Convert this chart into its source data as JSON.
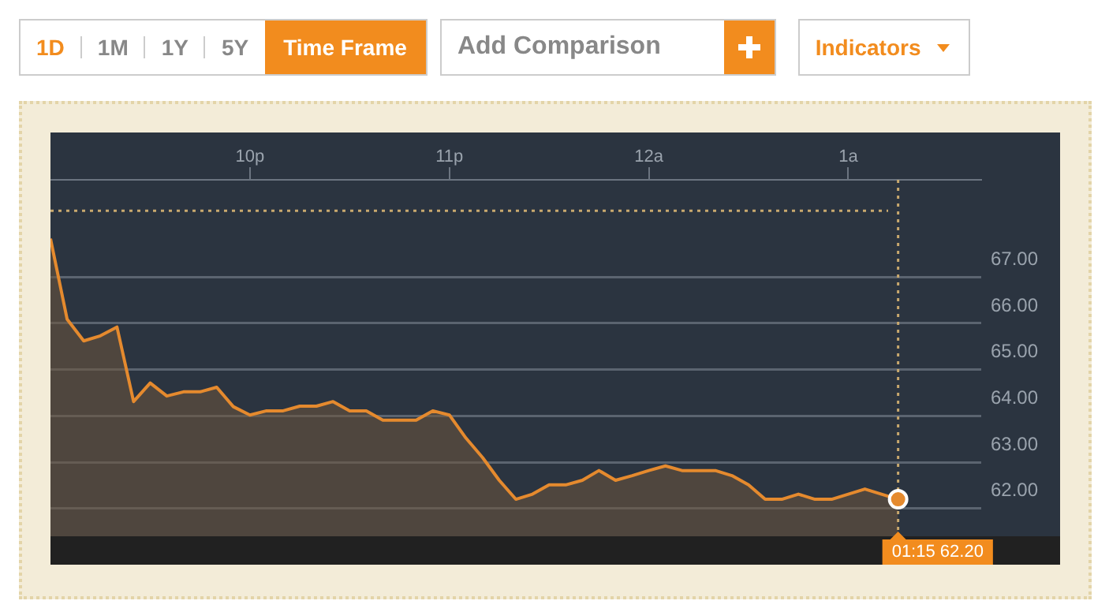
{
  "chart_data": {
    "type": "area",
    "categories": [
      null,
      null,
      null,
      null,
      null,
      null,
      null,
      null,
      null,
      null,
      null,
      null,
      "10p",
      null,
      null,
      null,
      null,
      null,
      null,
      null,
      null,
      null,
      null,
      null,
      "11p",
      null,
      null,
      null,
      null,
      null,
      null,
      null,
      null,
      null,
      null,
      null,
      "12a",
      null,
      null,
      null,
      null,
      null,
      null,
      null,
      null,
      null,
      null,
      null,
      "1a",
      null,
      null,
      null,
      null,
      null,
      null,
      null,
      null
    ],
    "values": [
      67.83,
      66.09,
      65.62,
      65.73,
      65.92,
      64.31,
      64.71,
      64.43,
      64.52,
      64.52,
      64.62,
      64.2,
      64.02,
      64.11,
      64.11,
      64.21,
      64.21,
      64.31,
      64.11,
      64.11,
      63.91,
      63.91,
      63.91,
      64.11,
      64.02,
      63.52,
      63.1,
      62.61,
      62.2,
      62.31,
      62.51,
      62.51,
      62.61,
      62.82,
      62.61,
      62.71,
      62.82,
      62.92,
      62.82,
      62.82,
      62.82,
      62.71,
      62.51,
      62.2,
      62.2,
      62.31,
      62.2,
      62.2,
      62.31,
      62.42,
      62.31,
      62.2,
      null,
      null,
      null,
      null,
      null
    ],
    "color": "#e58a2e",
    "ylim": [
      61.4,
      69.1
    ],
    "yticks": [
      {
        "value": 62,
        "label": "62.00"
      },
      {
        "value": 63,
        "label": "63.00"
      },
      {
        "value": 64,
        "label": "64.00"
      },
      {
        "value": 65,
        "label": "65.00"
      },
      {
        "value": 66,
        "label": "66.00"
      },
      {
        "value": 67,
        "label": "67.00"
      }
    ],
    "grid": "y",
    "legend": false,
    "marker": "none",
    "ref_lines": [
      {
        "axis": "y",
        "value": 68.43,
        "color": "#c9a96e",
        "line_style": "dotted"
      }
    ],
    "annotations": [
      "1D",
      "1M",
      "1Y",
      "5Y",
      "Time Frame",
      "Add Comparison",
      "Indicators",
      "01:15 62.20"
    ]
  }
}
